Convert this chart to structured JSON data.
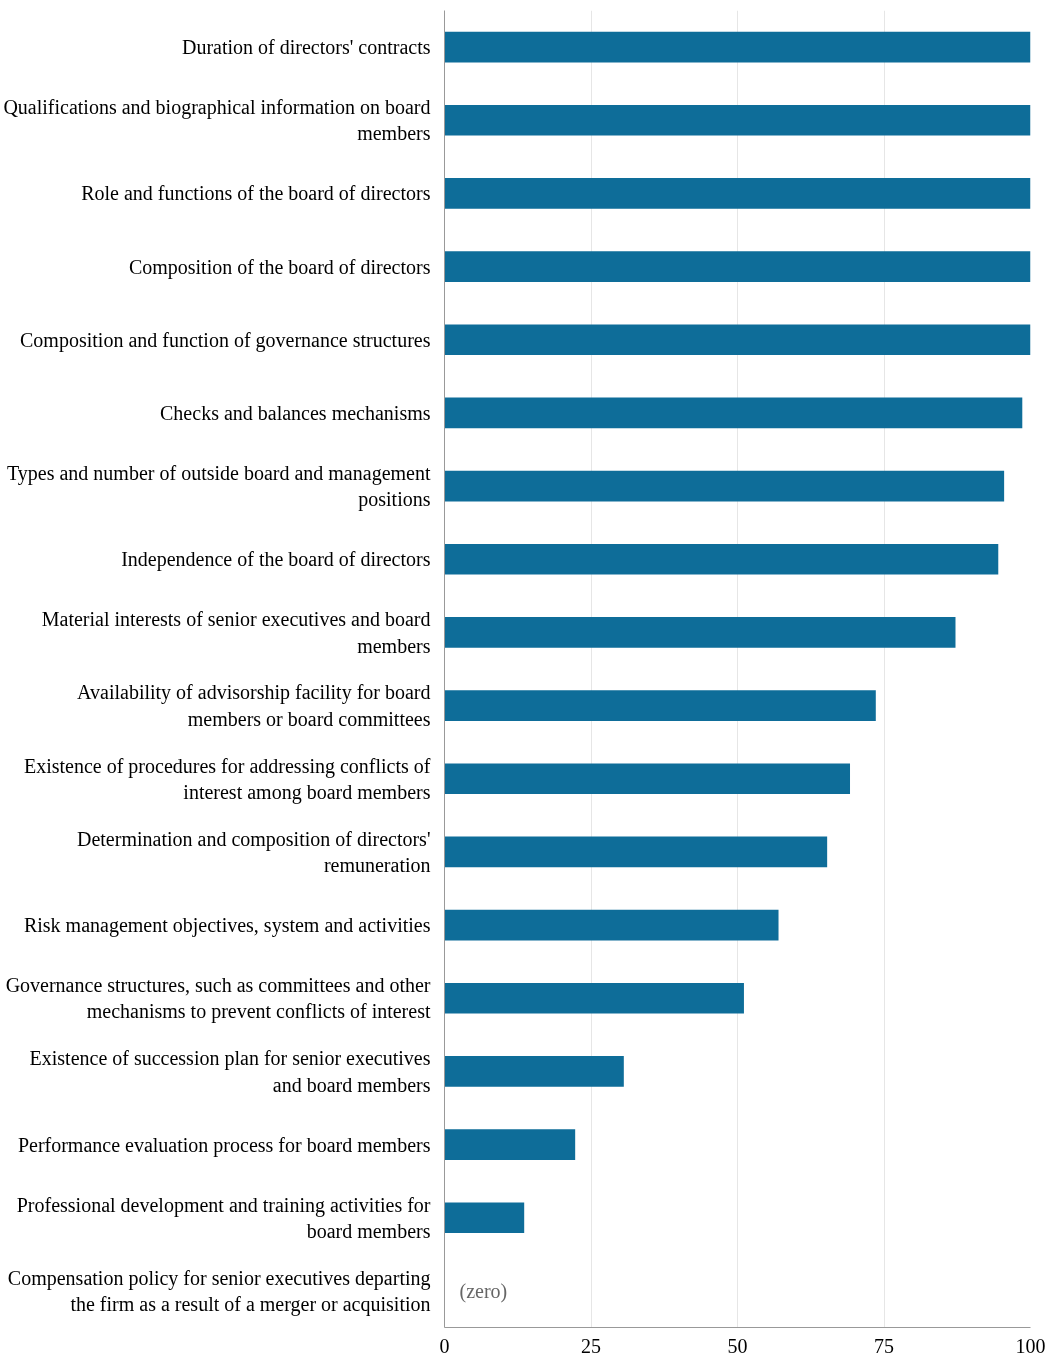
{
  "chart_data": {
    "type": "bar",
    "orientation": "horizontal",
    "categories": [
      "Duration of directors' contracts",
      "Qualifications and biographical information on board members",
      "Role and functions of the board of directors",
      "Composition of the board of directors",
      "Composition and function of governance structures",
      "Checks and balances mechanisms",
      "Types and number of outside board and management positions",
      "Independence of the board of directors",
      "Material interests of senior executives and board members",
      "Availability of advisorship facility for board members or board committees",
      "Existence of procedures for addressing conflicts of interest among board members",
      "Determination and composition of directors' remuneration",
      "Risk management objectives, system and activities",
      "Governance structures, such as committees and other mechanisms to prevent conflicts of interest",
      "Existence of succession plan for senior executives and board members",
      "Performance evaluation process for board members",
      "Professional development and training activities for board members",
      "Compensation policy for senior executives departing the firm as a result of a merger or acquisition"
    ],
    "values": [
      100,
      100,
      100,
      100,
      100,
      98.6,
      95.5,
      94.5,
      87.2,
      73.6,
      69.2,
      65.3,
      57.0,
      51.1,
      30.6,
      22.3,
      13.6,
      0
    ],
    "color": "#0e6d99",
    "xlim": [
      0,
      100
    ],
    "xticks": [
      0,
      25,
      50,
      75,
      100
    ],
    "grid": "x",
    "annotations": [
      {
        "text": "(zero)",
        "x": 0,
        "y": "Compensation policy for senior executives departing the firm as a result of a merger or acquisition"
      }
    ]
  }
}
